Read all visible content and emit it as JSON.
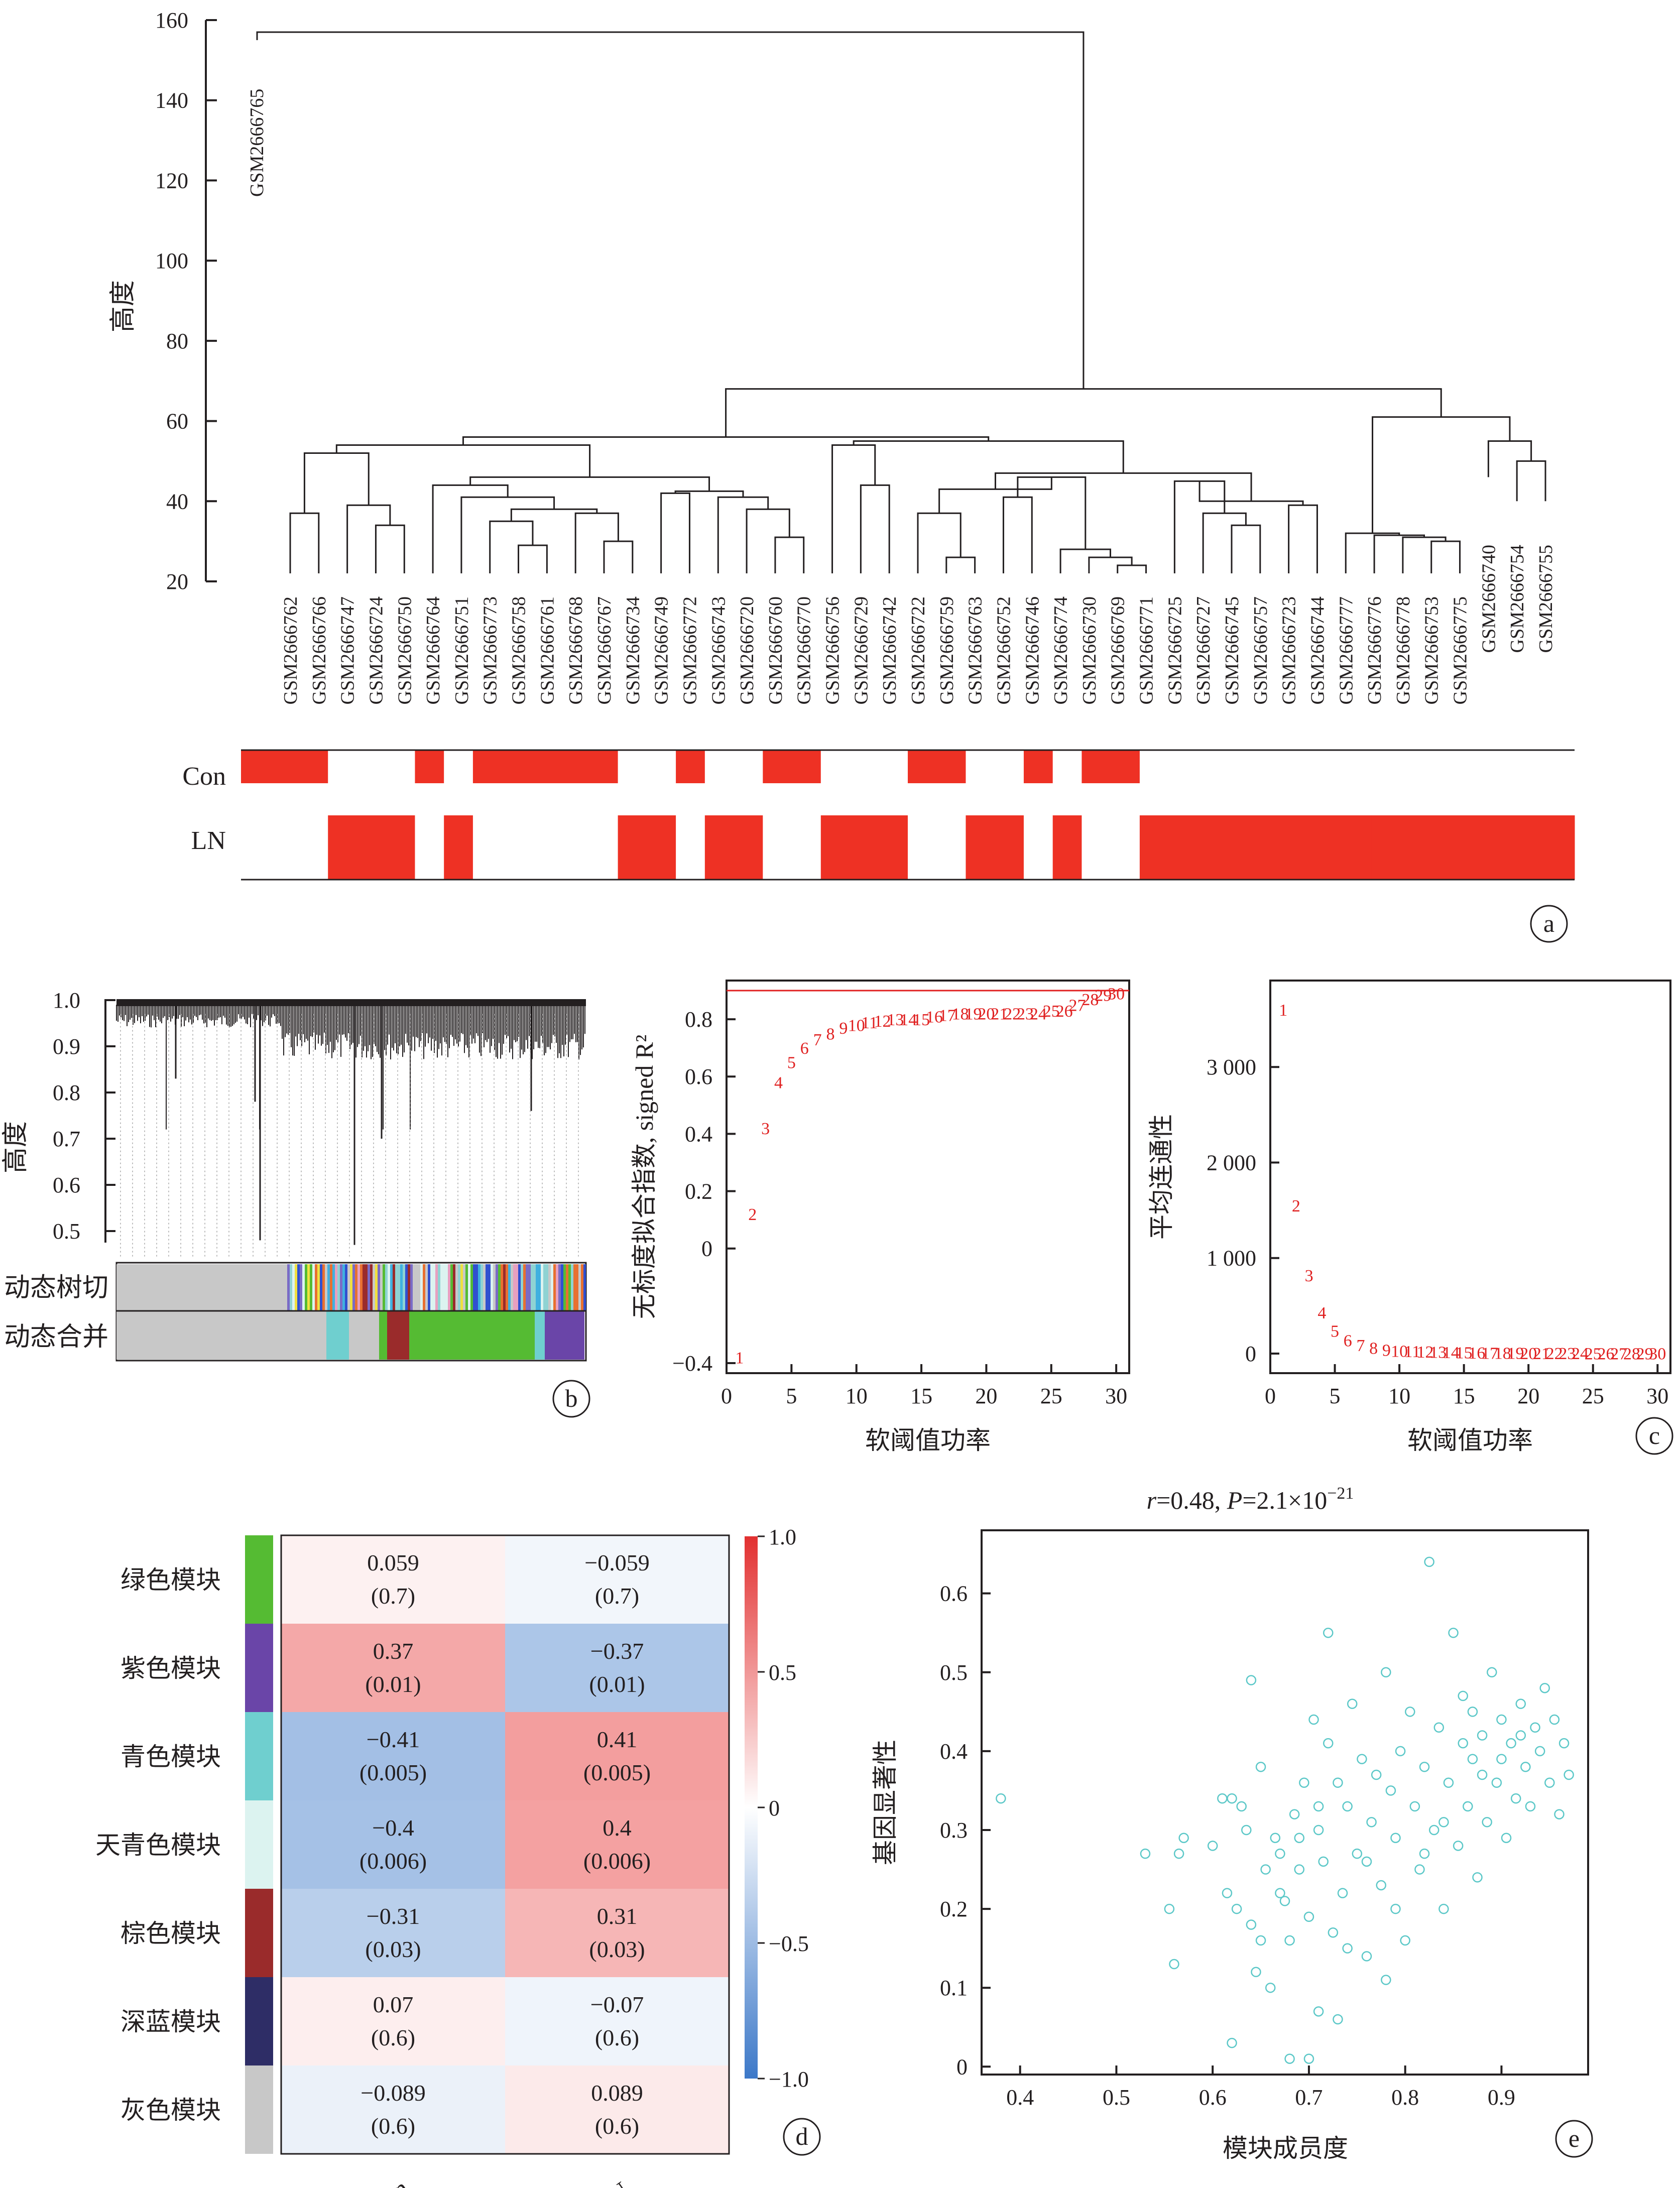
{
  "panels": {
    "a": "a",
    "b": "b",
    "c": "c",
    "d": "d",
    "e": "e"
  },
  "panel_a": {
    "ylabel": "高度",
    "yticks": [
      "160",
      "140",
      "120",
      "100",
      "80",
      "60",
      "40",
      "20"
    ],
    "ytick_vals": [
      160,
      140,
      120,
      100,
      80,
      60,
      40,
      20
    ],
    "outlier_leaf": "GSM2666765",
    "leaves": [
      "GSM2666762",
      "GSM2666766",
      "GSM2666747",
      "GSM2666724",
      "GSM2666750",
      "GSM2666764",
      "GSM2666751",
      "GSM2666773",
      "GSM2666758",
      "GSM2666761",
      "GSM2666768",
      "GSM2666767",
      "GSM2666734",
      "GSM2666749",
      "GSM2666772",
      "GSM2666743",
      "GSM2666720",
      "GSM2666760",
      "GSM2666770",
      "GSM2666756",
      "GSM2666729",
      "GSM2666742",
      "GSM2666722",
      "GSM2666759",
      "GSM2666763",
      "GSM2666752",
      "GSM2666746",
      "GSM2666774",
      "GSM2666730",
      "GSM2666769",
      "GSM2666771",
      "GSM2666725",
      "GSM2666727",
      "GSM2666745",
      "GSM2666757",
      "GSM2666723",
      "GSM2666744",
      "GSM2666777",
      "GSM2666776",
      "GSM2666778",
      "GSM2666753",
      "GSM2666775",
      "GSM2666740",
      "GSM2666754",
      "GSM2666755"
    ],
    "row_con": "Con",
    "row_ln": "LN",
    "con_pattern": [
      1,
      1,
      1,
      0,
      0,
      0,
      1,
      0,
      1,
      1,
      1,
      1,
      1,
      0,
      0,
      1,
      0,
      0,
      1,
      1,
      0,
      0,
      0,
      1,
      1,
      0,
      0,
      1,
      0,
      1,
      1,
      0,
      0,
      0,
      0,
      0,
      0,
      0,
      0,
      0,
      0,
      0,
      0,
      0,
      0,
      0
    ],
    "bar_color": "#ee3124"
  },
  "panel_b": {
    "ylabel": "高度",
    "yticks": [
      "1.0",
      "0.9",
      "0.8",
      "0.7",
      "0.6",
      "0.5"
    ],
    "ytick_vals": [
      1.0,
      0.9,
      0.8,
      0.7,
      0.6,
      0.5
    ],
    "row1": "动态树切",
    "row2": "动态合并"
  },
  "chart_data": [
    {
      "type": "scatter",
      "name_ref": "scale-free fit",
      "xlabel": "软阈值功率",
      "ylabel": "无标度拟合指数, signed R²",
      "xlim": [
        0,
        31
      ],
      "ylim": [
        -0.4,
        0.9
      ],
      "xticks": [
        "0",
        "5",
        "10",
        "15",
        "20",
        "25",
        "30"
      ],
      "yticks": [
        "0.8",
        "0.6",
        "0.4",
        "0.2",
        "0",
        "−0.4"
      ],
      "ytick_vals": [
        0.8,
        0.6,
        0.4,
        0.2,
        0,
        -0.4
      ],
      "threshold": 0.9,
      "x": [
        1,
        2,
        3,
        4,
        5,
        6,
        7,
        8,
        9,
        10,
        11,
        12,
        13,
        14,
        15,
        16,
        17,
        18,
        19,
        20,
        21,
        22,
        23,
        24,
        25,
        26,
        27,
        28,
        29,
        30
      ],
      "y": [
        -0.38,
        0.12,
        0.42,
        0.58,
        0.65,
        0.7,
        0.73,
        0.75,
        0.77,
        0.78,
        0.79,
        0.795,
        0.8,
        0.8,
        0.8,
        0.81,
        0.815,
        0.82,
        0.82,
        0.82,
        0.82,
        0.82,
        0.82,
        0.82,
        0.83,
        0.83,
        0.85,
        0.87,
        0.885,
        0.89
      ],
      "color": "#e02020"
    },
    {
      "type": "scatter",
      "name_ref": "mean connectivity",
      "xlabel": "软阈值功率",
      "ylabel": "平均连通性",
      "xlim": [
        0,
        31
      ],
      "ylim": [
        -100,
        3800
      ],
      "xticks": [
        "0",
        "5",
        "10",
        "15",
        "20",
        "25",
        "30"
      ],
      "yticks": [
        "3 000",
        "2 000",
        "1 000",
        "0"
      ],
      "ytick_vals": [
        3000,
        2000,
        1000,
        0
      ],
      "x": [
        1,
        2,
        3,
        4,
        5,
        6,
        7,
        8,
        9,
        10,
        11,
        12,
        13,
        14,
        15,
        16,
        17,
        18,
        19,
        20,
        21,
        22,
        23,
        24,
        25,
        26,
        27,
        28,
        29,
        30
      ],
      "y": [
        3600,
        1550,
        820,
        430,
        240,
        140,
        90,
        60,
        40,
        30,
        25,
        20,
        18,
        15,
        12,
        10,
        9,
        8,
        7,
        6,
        5,
        5,
        4,
        4,
        3,
        3,
        3,
        2,
        2,
        2
      ],
      "color": "#e02020"
    },
    {
      "type": "heatmap",
      "columns": [
        "Con",
        "LN"
      ],
      "rows": [
        "绿色模块",
        "紫色模块",
        "青色模块",
        "天青色模块",
        "棕色模块",
        "深蓝模块",
        "灰色模块"
      ],
      "row_colors": [
        "#55bb33",
        "#6a45a8",
        "#6fcfcf",
        "#dcf3f0",
        "#9a2b2b",
        "#2e2d66",
        "#c8c8c8"
      ],
      "corr": [
        [
          0.059,
          -0.059
        ],
        [
          0.37,
          -0.37
        ],
        [
          -0.41,
          0.41
        ],
        [
          -0.4,
          0.4
        ],
        [
          -0.31,
          0.31
        ],
        [
          0.07,
          -0.07
        ],
        [
          -0.089,
          0.089
        ]
      ],
      "corr_labels": [
        [
          "0.059",
          "−0.059"
        ],
        [
          "0.37",
          "−0.37"
        ],
        [
          "−0.41",
          "0.41"
        ],
        [
          "−0.4",
          "0.4"
        ],
        [
          "−0.31",
          "0.31"
        ],
        [
          "0.07",
          "−0.07"
        ],
        [
          "−0.089",
          "0.089"
        ]
      ],
      "pvalues": [
        [
          "(0.7)",
          "(0.7)"
        ],
        [
          "(0.01)",
          "(0.01)"
        ],
        [
          "(0.005)",
          "(0.005)"
        ],
        [
          "(0.006)",
          "(0.006)"
        ],
        [
          "(0.03)",
          "(0.03)"
        ],
        [
          "(0.6)",
          "(0.6)"
        ],
        [
          "(0.6)",
          "(0.6)"
        ]
      ],
      "scale_ticks": [
        "1.0",
        "0.5",
        "0",
        "−0.5",
        "−1.0"
      ],
      "scale_vals": [
        1.0,
        0.5,
        0,
        -0.5,
        -1.0
      ]
    },
    {
      "type": "scatter",
      "title_r": "r",
      "title_mid": "=0.48, ",
      "title_p": "P",
      "title_end": "=2.1×10",
      "title_exp": "−21",
      "xlabel": "模块成员度",
      "ylabel": "基因显著性",
      "xlim": [
        0.36,
        0.99
      ],
      "ylim": [
        -0.01,
        0.68
      ],
      "xticks": [
        "0.4",
        "0.5",
        "0.6",
        "0.7",
        "0.8",
        "0.9"
      ],
      "xtick_vals": [
        0.4,
        0.5,
        0.6,
        0.7,
        0.8,
        0.9
      ],
      "yticks": [
        "0.6",
        "0.5",
        "0.4",
        "0.3",
        "0.2",
        "0.1",
        "0"
      ],
      "ytick_vals": [
        0.6,
        0.5,
        0.4,
        0.3,
        0.2,
        0.1,
        0
      ],
      "color": "#5cc8c8",
      "points": [
        [
          0.38,
          0.34
        ],
        [
          0.53,
          0.27
        ],
        [
          0.555,
          0.2
        ],
        [
          0.56,
          0.13
        ],
        [
          0.565,
          0.27
        ],
        [
          0.57,
          0.29
        ],
        [
          0.6,
          0.28
        ],
        [
          0.61,
          0.34
        ],
        [
          0.615,
          0.22
        ],
        [
          0.62,
          0.03
        ],
        [
          0.62,
          0.34
        ],
        [
          0.625,
          0.2
        ],
        [
          0.63,
          0.33
        ],
        [
          0.635,
          0.3
        ],
        [
          0.64,
          0.49
        ],
        [
          0.64,
          0.18
        ],
        [
          0.645,
          0.12
        ],
        [
          0.65,
          0.38
        ],
        [
          0.655,
          0.25
        ],
        [
          0.66,
          0.1
        ],
        [
          0.665,
          0.29
        ],
        [
          0.67,
          0.22
        ],
        [
          0.675,
          0.21
        ],
        [
          0.68,
          0.16
        ],
        [
          0.68,
          0.01
        ],
        [
          0.685,
          0.32
        ],
        [
          0.69,
          0.25
        ],
        [
          0.695,
          0.36
        ],
        [
          0.7,
          0.19
        ],
        [
          0.7,
          0.01
        ],
        [
          0.705,
          0.44
        ],
        [
          0.71,
          0.3
        ],
        [
          0.71,
          0.07
        ],
        [
          0.715,
          0.26
        ],
        [
          0.72,
          0.55
        ],
        [
          0.72,
          0.41
        ],
        [
          0.725,
          0.17
        ],
        [
          0.73,
          0.36
        ],
        [
          0.73,
          0.06
        ],
        [
          0.735,
          0.22
        ],
        [
          0.74,
          0.33
        ],
        [
          0.745,
          0.46
        ],
        [
          0.75,
          0.27
        ],
        [
          0.755,
          0.39
        ],
        [
          0.76,
          0.14
        ],
        [
          0.765,
          0.31
        ],
        [
          0.77,
          0.37
        ],
        [
          0.775,
          0.23
        ],
        [
          0.78,
          0.5
        ],
        [
          0.78,
          0.11
        ],
        [
          0.785,
          0.35
        ],
        [
          0.79,
          0.29
        ],
        [
          0.795,
          0.4
        ],
        [
          0.8,
          0.16
        ],
        [
          0.805,
          0.45
        ],
        [
          0.81,
          0.33
        ],
        [
          0.815,
          0.25
        ],
        [
          0.82,
          0.38
        ],
        [
          0.825,
          0.64
        ],
        [
          0.83,
          0.3
        ],
        [
          0.835,
          0.43
        ],
        [
          0.84,
          0.2
        ],
        [
          0.845,
          0.36
        ],
        [
          0.85,
          0.55
        ],
        [
          0.855,
          0.28
        ],
        [
          0.86,
          0.47
        ],
        [
          0.865,
          0.33
        ],
        [
          0.87,
          0.39
        ],
        [
          0.875,
          0.24
        ],
        [
          0.88,
          0.42
        ],
        [
          0.885,
          0.31
        ],
        [
          0.89,
          0.5
        ],
        [
          0.895,
          0.36
        ],
        [
          0.9,
          0.44
        ],
        [
          0.905,
          0.29
        ],
        [
          0.91,
          0.41
        ],
        [
          0.915,
          0.34
        ],
        [
          0.92,
          0.46
        ],
        [
          0.925,
          0.38
        ],
        [
          0.93,
          0.33
        ],
        [
          0.935,
          0.43
        ],
        [
          0.94,
          0.4
        ],
        [
          0.945,
          0.48
        ],
        [
          0.95,
          0.36
        ],
        [
          0.955,
          0.44
        ],
        [
          0.96,
          0.32
        ],
        [
          0.965,
          0.41
        ],
        [
          0.97,
          0.37
        ],
        [
          0.86,
          0.41
        ],
        [
          0.88,
          0.37
        ],
        [
          0.9,
          0.39
        ],
        [
          0.92,
          0.42
        ],
        [
          0.87,
          0.45
        ],
        [
          0.84,
          0.31
        ],
        [
          0.82,
          0.27
        ],
        [
          0.79,
          0.2
        ],
        [
          0.76,
          0.26
        ],
        [
          0.74,
          0.15
        ],
        [
          0.71,
          0.33
        ],
        [
          0.69,
          0.29
        ],
        [
          0.67,
          0.27
        ],
        [
          0.65,
          0.16
        ]
      ]
    }
  ]
}
